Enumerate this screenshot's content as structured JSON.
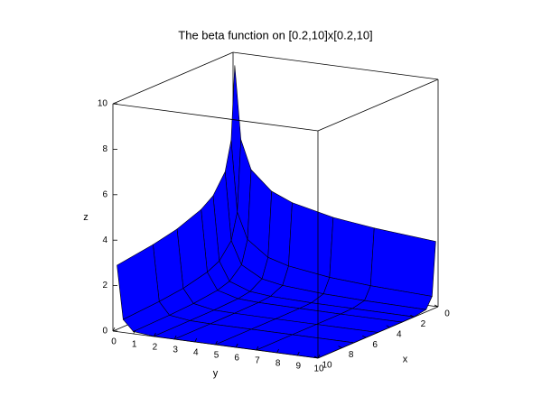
{
  "chart_data": {
    "type": "surface",
    "title": "The beta function on [0.2,10]x[0.2,10]",
    "x_label": "x",
    "y_label": "y",
    "z_label": "z",
    "x": [
      0.2,
      0.5,
      1,
      2,
      3,
      5,
      7,
      10
    ],
    "y": [
      0.2,
      0.5,
      1,
      2,
      3,
      5,
      7,
      10
    ],
    "z": [
      [
        9.5,
        6.27,
        5,
        4.17,
        3.79,
        3.38,
        3.15,
        2.92
      ],
      [
        6.27,
        3.14,
        2,
        1.33,
        1.07,
        0.81,
        0.68,
        0.57
      ],
      [
        5,
        2,
        1,
        0.5,
        0.33,
        0.2,
        0.14,
        0.1
      ],
      [
        4.17,
        1.33,
        0.5,
        0.17,
        0.08,
        0.03,
        0.02,
        0.01
      ],
      [
        3.79,
        1.07,
        0.33,
        0.08,
        0.03,
        0.01,
        0,
        0
      ],
      [
        3.38,
        0.81,
        0.2,
        0.03,
        0.01,
        0,
        0,
        0
      ],
      [
        3.15,
        0.68,
        0.14,
        0.02,
        0,
        0,
        0,
        0
      ],
      [
        2.92,
        0.57,
        0.1,
        0.01,
        0,
        0,
        0,
        0
      ]
    ],
    "color": "#0000ff",
    "xlim": [
      0,
      10
    ],
    "ylim": [
      0,
      10
    ],
    "zlim": [
      0,
      10
    ],
    "xticks": [
      0,
      2,
      4,
      6,
      8,
      10
    ],
    "yticks": [
      0,
      1,
      2,
      3,
      4,
      5,
      6,
      7,
      8,
      9,
      10
    ],
    "zticks": [
      0,
      2,
      4,
      6,
      8,
      10
    ]
  }
}
